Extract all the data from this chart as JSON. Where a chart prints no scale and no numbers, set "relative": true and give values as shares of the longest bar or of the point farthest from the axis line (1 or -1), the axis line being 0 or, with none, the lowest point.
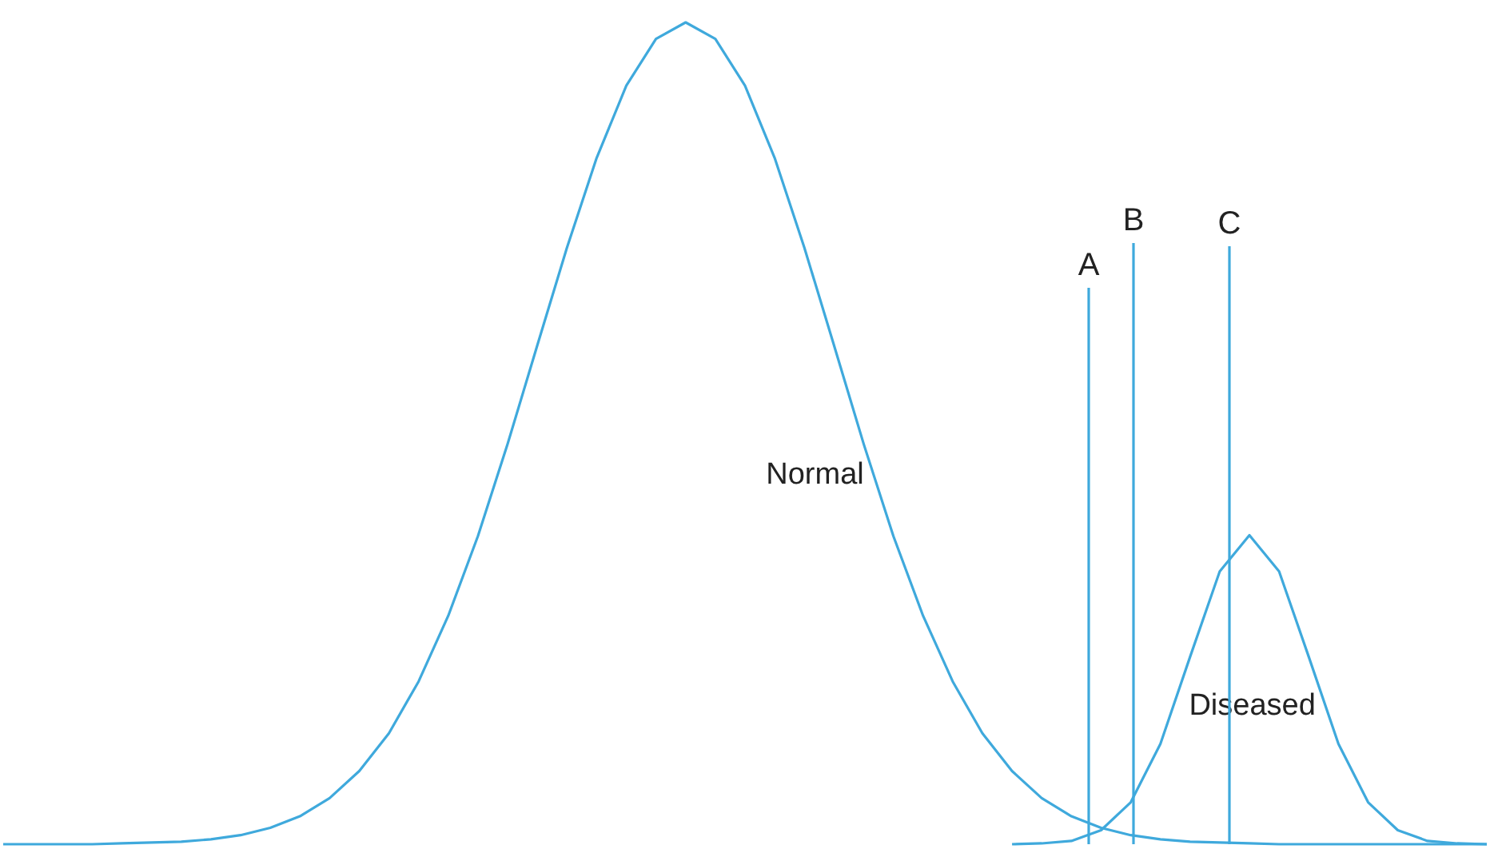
{
  "chart_data": {
    "type": "line",
    "relative": true,
    "marker": "none",
    "line_style": "solid",
    "categories": [
      null,
      null,
      null,
      null,
      null,
      null,
      null,
      null,
      null,
      null,
      null,
      null,
      null,
      null,
      null,
      null,
      null,
      null,
      null,
      null,
      null,
      null,
      null,
      null,
      null,
      null,
      null,
      null,
      null,
      null,
      null,
      null,
      null,
      null,
      null,
      null,
      null,
      null,
      null,
      null,
      null,
      null,
      null,
      null,
      null,
      null,
      null,
      null,
      null,
      null,
      null
    ],
    "series": [
      {
        "name": "Normal",
        "color": "#3fa9dc",
        "values": [
          0,
          0,
          0,
          0,
          0.001,
          0.002,
          0.003,
          0.006,
          0.011,
          0.02,
          0.034,
          0.056,
          0.089,
          0.135,
          0.198,
          0.278,
          0.375,
          0.487,
          0.607,
          0.726,
          0.835,
          0.923,
          0.98,
          1,
          0.98,
          0.923,
          0.835,
          0.726,
          0.607,
          0.487,
          0.375,
          0.278,
          0.198,
          0.135,
          0.089,
          0.056,
          0.034,
          0.02,
          0.011,
          0.006,
          0.003,
          0.002,
          0.001,
          0,
          0,
          0,
          0,
          0,
          0,
          0,
          0
        ]
      },
      {
        "name": "Diseased",
        "color": "#3fa9dc",
        "values": [
          null,
          null,
          null,
          null,
          null,
          null,
          null,
          null,
          null,
          null,
          null,
          null,
          null,
          null,
          null,
          null,
          null,
          null,
          null,
          null,
          null,
          null,
          null,
          null,
          null,
          null,
          null,
          null,
          null,
          null,
          null,
          null,
          null,
          null,
          0,
          0.001,
          0.004,
          0.017,
          0.051,
          0.122,
          0.228,
          0.332,
          0.376,
          0.332,
          0.228,
          0.122,
          0.051,
          0.017,
          0.004,
          0.001,
          0
        ]
      }
    ],
    "annotations": [
      "A",
      "B",
      "C"
    ]
  }
}
